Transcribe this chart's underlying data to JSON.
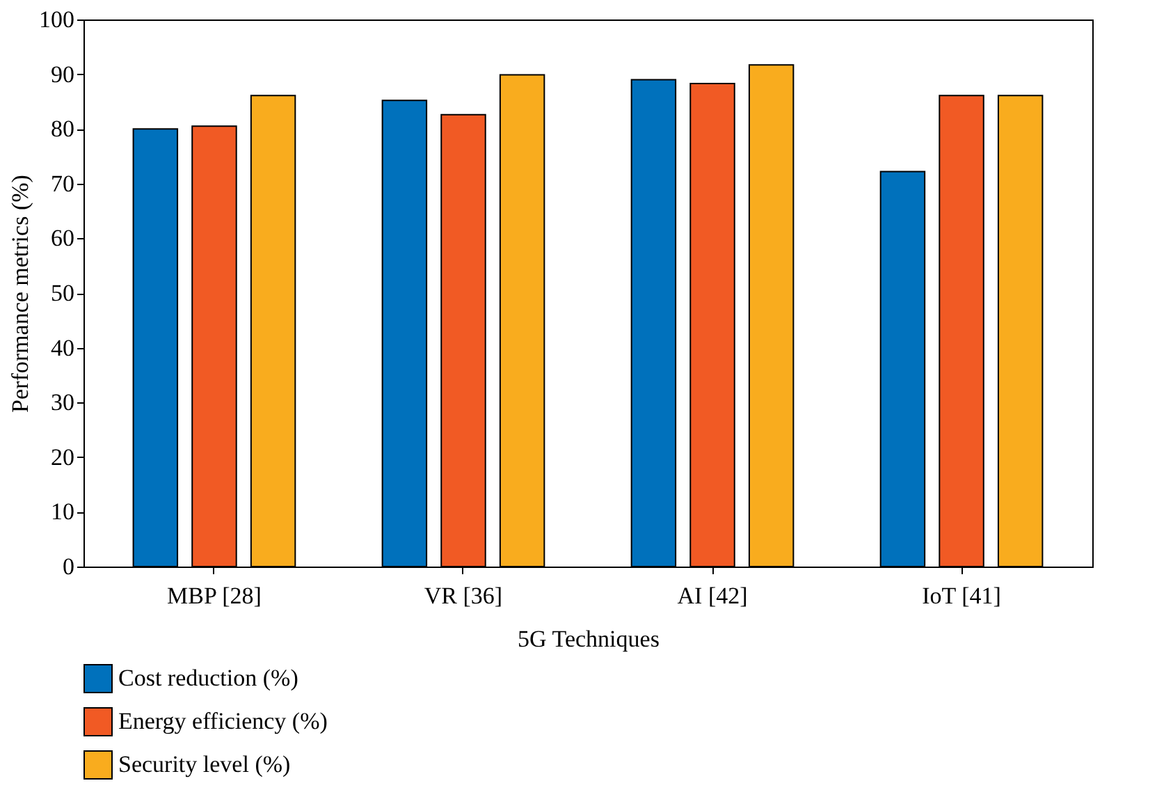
{
  "chart_data": {
    "type": "bar",
    "xlabel": "5G Techniques",
    "ylabel": "Performance metrics (%)",
    "categories": [
      "MBP [28]",
      "VR [36]",
      "AI [42]",
      "IoT [41]"
    ],
    "series": [
      {
        "name": "Cost reduction (%)",
        "color": "#0071bc",
        "values": [
          80,
          85.2,
          89,
          72.2
        ]
      },
      {
        "name": "Energy efficiency (%)",
        "color": "#f15a24",
        "values": [
          80.5,
          82.6,
          88.3,
          86.1
        ]
      },
      {
        "name": "Security level (%)",
        "color": "#f9ac1e",
        "values": [
          86.1,
          89.9,
          91.7,
          86.1
        ]
      }
    ],
    "ylim": [
      0,
      100
    ],
    "yticks": [
      0,
      10,
      20,
      30,
      40,
      50,
      60,
      70,
      80,
      90,
      100
    ],
    "grid": false,
    "legend": "bottom left"
  }
}
